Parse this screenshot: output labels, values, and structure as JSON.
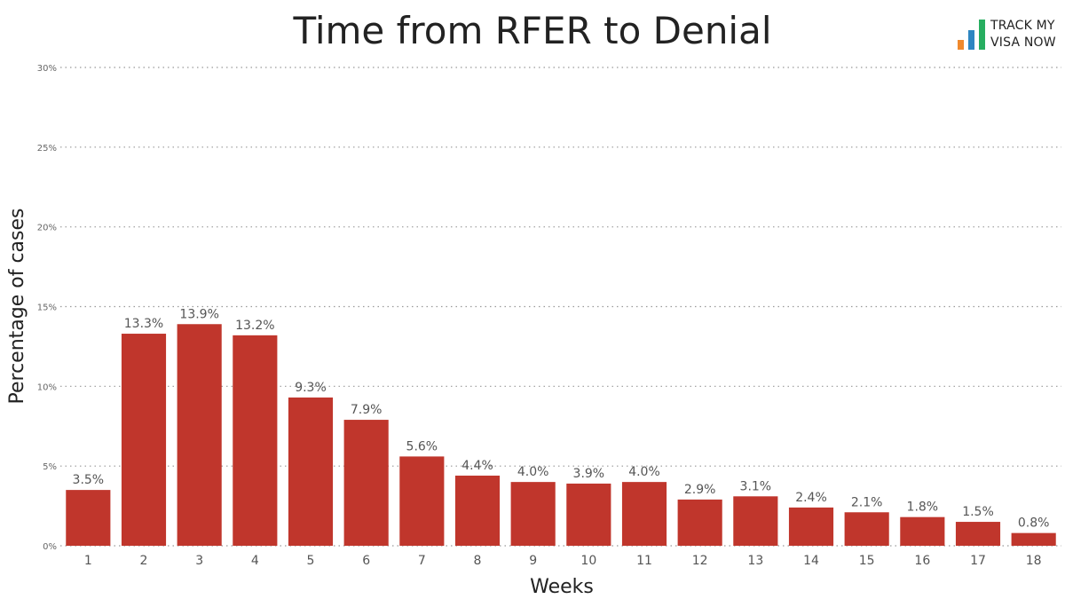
{
  "chart_data": {
    "type": "bar",
    "title": "Time from RFER to Denial",
    "xlabel": "Weeks",
    "ylabel": "Percentage of cases",
    "categories": [
      "1",
      "2",
      "3",
      "4",
      "5",
      "6",
      "7",
      "8",
      "9",
      "10",
      "11",
      "12",
      "13",
      "14",
      "15",
      "16",
      "17",
      "18"
    ],
    "values": [
      3.5,
      13.3,
      13.9,
      13.2,
      9.3,
      7.9,
      5.6,
      4.4,
      4.0,
      3.9,
      4.0,
      2.9,
      3.1,
      2.4,
      2.1,
      1.8,
      1.5,
      0.8
    ],
    "data_labels": [
      "3.5%",
      "13.3%",
      "13.9%",
      "13.2%",
      "9.3%",
      "7.9%",
      "5.6%",
      "4.4%",
      "4.0%",
      "3.9%",
      "4.0%",
      "2.9%",
      "3.1%",
      "2.4%",
      "2.1%",
      "1.8%",
      "1.5%",
      "0.8%"
    ],
    "ylim": [
      0,
      30
    ],
    "yticks": [
      0,
      5,
      10,
      15,
      20,
      25,
      30
    ],
    "ytick_labels": [
      "0%",
      "5%",
      "10%",
      "15%",
      "20%",
      "25%",
      "30%"
    ],
    "grid": true,
    "bar_color": "#c0362c"
  },
  "logo": {
    "line1": "TRACK MY",
    "line2": "VISA NOW",
    "bar_colors": [
      "#f0892d",
      "#2e86c1",
      "#27ae60"
    ]
  }
}
